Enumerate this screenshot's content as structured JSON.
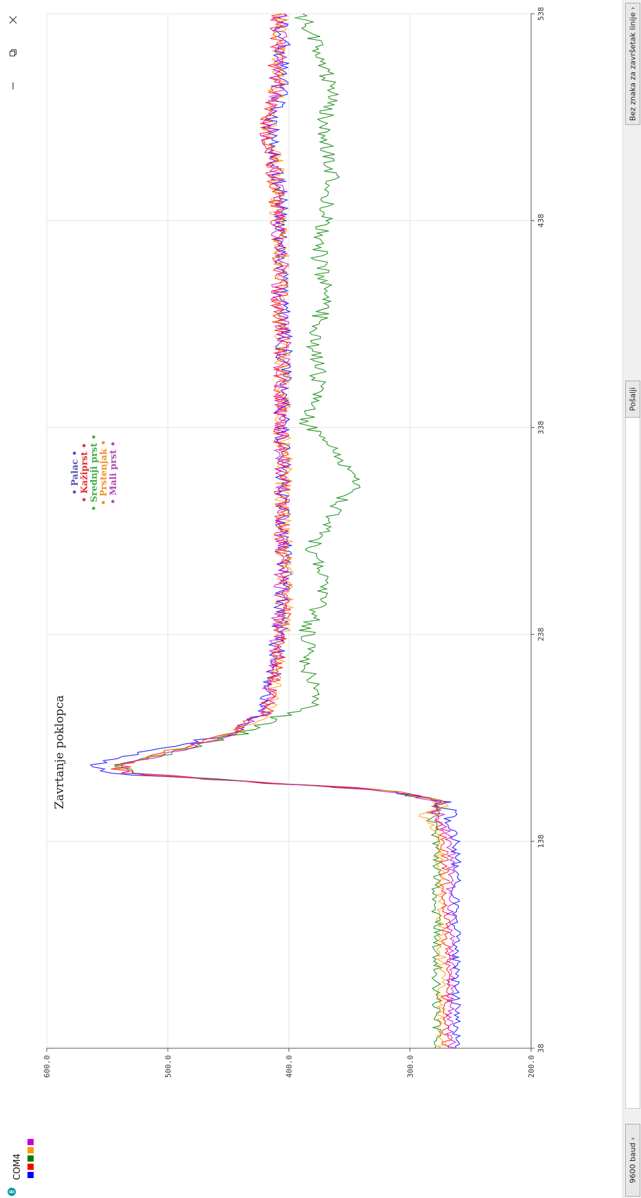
{
  "window": {
    "port": "COM4",
    "controls": [
      "close-icon",
      "restore-icon",
      "minimize-icon"
    ]
  },
  "bottom_bar": {
    "baud": "9600 baud",
    "send_label": "Pošalji",
    "line_ending": "Bez znaka za završetak linije",
    "message_value": ""
  },
  "legend_swatches": [
    {
      "color": "#0000ff"
    },
    {
      "color": "#ff0000"
    },
    {
      "color": "#008000"
    },
    {
      "color": "#ff9900"
    },
    {
      "color": "#cc00cc"
    }
  ],
  "annotations": {
    "event_label": "Zavrtanje poklopca",
    "legend_items": [
      {
        "label": "Palac",
        "color": "#5552b0"
      },
      {
        "label": "Kažiprst",
        "color": "#e03030"
      },
      {
        "label": "Srednji prst",
        "color": "#3fae3f"
      },
      {
        "label": "Prstenjak",
        "color": "#f0902a"
      },
      {
        "label": "Mali prst",
        "color": "#b04ab6"
      }
    ]
  },
  "chart_data": {
    "type": "line",
    "xlabel": "",
    "ylabel": "",
    "xlim": [
      38,
      538
    ],
    "ylim": [
      200,
      600
    ],
    "x_ticks": [
      "38",
      "138",
      "238",
      "338",
      "438",
      "538"
    ],
    "y_ticks": [
      "200.0",
      "300.0",
      "400.0",
      "500.0",
      "600.0"
    ],
    "grid": true,
    "series": [
      {
        "color": "#0000ff",
        "x": [
          38,
          80,
          120,
          138,
          150,
          157,
          163,
          167,
          171,
          175,
          190,
          200,
          220,
          240,
          260,
          280,
          300,
          320,
          340,
          360,
          380,
          400,
          420,
          440,
          460,
          470,
          480,
          500,
          520,
          538
        ],
        "y": [
          262,
          262,
          262,
          262,
          270,
          273,
          330,
          440,
          555,
          565,
          450,
          420,
          412,
          408,
          405,
          404,
          405,
          404,
          406,
          405,
          404,
          407,
          406,
          408,
          408,
          412,
          416,
          408,
          406,
          405
        ]
      },
      {
        "color": "#ff0000",
        "x": [
          38,
          80,
          120,
          138,
          150,
          157,
          163,
          167,
          171,
          175,
          190,
          200,
          220,
          240,
          260,
          280,
          300,
          320,
          340,
          360,
          380,
          400,
          420,
          440,
          460,
          470,
          480,
          500,
          520,
          538
        ],
        "y": [
          270,
          270,
          271,
          272,
          280,
          275,
          325,
          440,
          535,
          540,
          448,
          420,
          410,
          406,
          404,
          405,
          406,
          405,
          407,
          406,
          406,
          408,
          407,
          410,
          412,
          414,
          420,
          412,
          410,
          408
        ]
      },
      {
        "color": "#008000",
        "x": [
          38,
          80,
          120,
          138,
          150,
          157,
          163,
          167,
          171,
          175,
          190,
          198,
          205,
          220,
          240,
          260,
          280,
          300,
          310,
          320,
          340,
          360,
          380,
          400,
          420,
          440,
          460,
          480,
          500,
          520,
          538
        ],
        "y": [
          278,
          278,
          278,
          278,
          283,
          275,
          325,
          440,
          535,
          535,
          440,
          410,
          375,
          385,
          385,
          370,
          380,
          360,
          345,
          352,
          385,
          375,
          380,
          370,
          375,
          370,
          365,
          372,
          365,
          375,
          390
        ]
      },
      {
        "color": "#ff9900",
        "x": [
          38,
          80,
          120,
          138,
          150,
          157,
          163,
          167,
          171,
          175,
          190,
          200,
          220,
          240,
          260,
          280,
          300,
          320,
          340,
          360,
          380,
          400,
          420,
          440,
          460,
          470,
          480,
          500,
          520,
          538
        ],
        "y": [
          274,
          274,
          275,
          276,
          284,
          275,
          325,
          440,
          537,
          540,
          445,
          418,
          410,
          405,
          403,
          404,
          405,
          404,
          406,
          405,
          405,
          407,
          406,
          409,
          410,
          412,
          418,
          410,
          408,
          406
        ]
      },
      {
        "color": "#cc00cc",
        "x": [
          38,
          80,
          120,
          138,
          150,
          157,
          163,
          167,
          171,
          175,
          190,
          200,
          220,
          240,
          260,
          280,
          300,
          320,
          340,
          360,
          380,
          400,
          420,
          440,
          460,
          470,
          480,
          500,
          520,
          538
        ],
        "y": [
          266,
          266,
          266,
          266,
          276,
          276,
          325,
          440,
          530,
          535,
          445,
          420,
          412,
          408,
          406,
          405,
          406,
          405,
          407,
          406,
          405,
          408,
          407,
          409,
          411,
          415,
          418,
          410,
          408,
          407
        ]
      }
    ]
  }
}
